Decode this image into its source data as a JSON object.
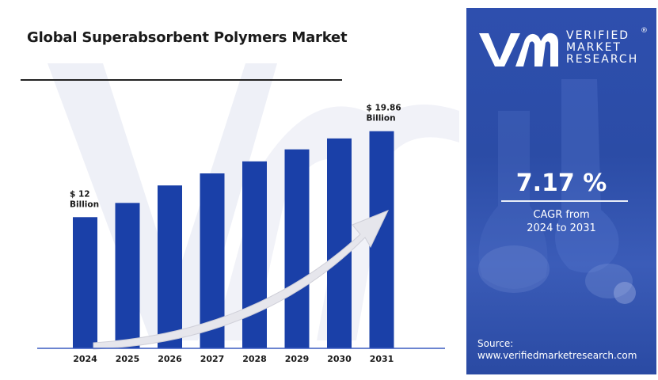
{
  "title": "Global Superabsorbent Polymers Market",
  "chart_data": {
    "type": "bar",
    "categories": [
      "2024",
      "2025",
      "2026",
      "2027",
      "2028",
      "2029",
      "2030",
      "2031"
    ],
    "values": [
      12,
      13.3,
      14.9,
      16.0,
      17.1,
      18.2,
      19.2,
      19.86
    ],
    "ylim": [
      0,
      21
    ],
    "grid": false,
    "bar_color": "#1a40a8",
    "arrow_color": "#e8e8ec",
    "annotations": [
      {
        "category": "2024",
        "line1": "$ 12",
        "line2": "Billion"
      },
      {
        "category": "2031",
        "line1": "$ 19.86",
        "line2": "Billion"
      }
    ]
  },
  "brand": {
    "line1": "VERIFIED",
    "line2": "MARKET",
    "line3": "RESEARCH",
    "registered": "®"
  },
  "cagr": {
    "value": "7.17 %",
    "label_line1": "CAGR from",
    "label_line2": "2024 to 2031"
  },
  "source": {
    "label": "Source:",
    "url": "www.verifiedmarketresearch.com"
  },
  "colors": {
    "panel": "#2e4fae",
    "bar": "#1a40a8",
    "watermark": "#eef0f7"
  }
}
